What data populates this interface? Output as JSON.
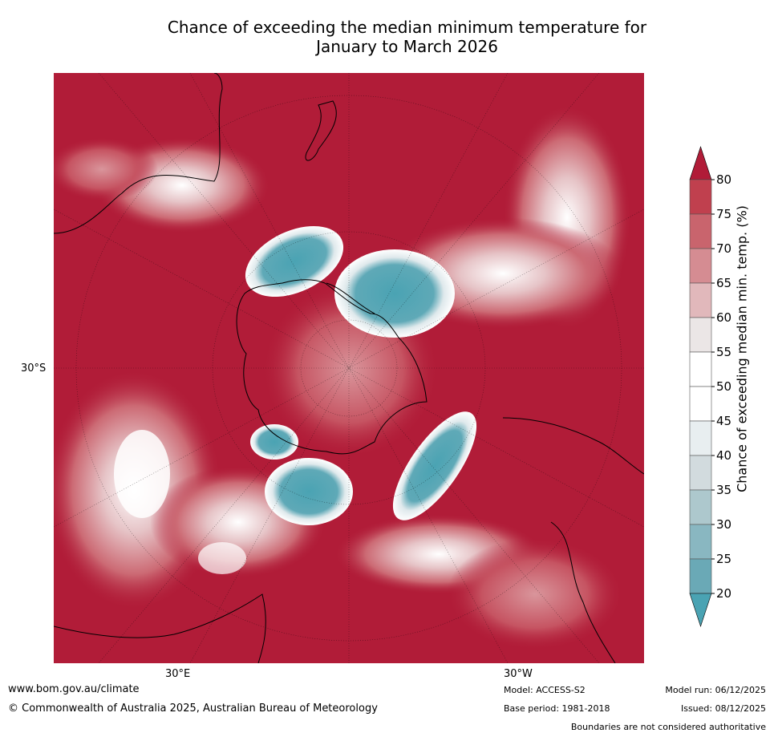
{
  "title": {
    "line1": "Chance of exceeding the median minimum temperature for",
    "line2": "January to March 2026"
  },
  "map": {
    "lat_label": "30°S",
    "lon_labels": {
      "east": "30°E",
      "west": "30°W"
    },
    "colors": {
      "ocean_high": "#b11c38",
      "land_outline": "#000000"
    }
  },
  "colorbar": {
    "label": "Chance of exceeding median min. temp. (%)",
    "ticks": [
      "80",
      "75",
      "70",
      "65",
      "60",
      "55",
      "50",
      "45",
      "40",
      "35",
      "30",
      "25",
      "20"
    ],
    "colors": [
      "#c0404e",
      "#c9646d",
      "#d58c92",
      "#e1b8bb",
      "#ebe6e6",
      "#ffffff",
      "#ffffff",
      "#e8eef0",
      "#d2dbde",
      "#adc8cd",
      "#89b7c1",
      "#6aa9b6"
    ],
    "top_arrow_color": "#b11c38",
    "bottom_arrow_color": "#4aa3b3"
  },
  "footer": {
    "url": "www.bom.gov.au/climate",
    "copyright": "© Commonwealth of Australia 2025, Australian Bureau of Meteorology",
    "model": "Model: ACCESS-S2",
    "base_period": "Base period: 1981-2018",
    "model_run": "Model run: 06/12/2025",
    "issued": "Issued: 08/12/2025",
    "disclaimer": "Boundaries are not considered authoritative"
  }
}
